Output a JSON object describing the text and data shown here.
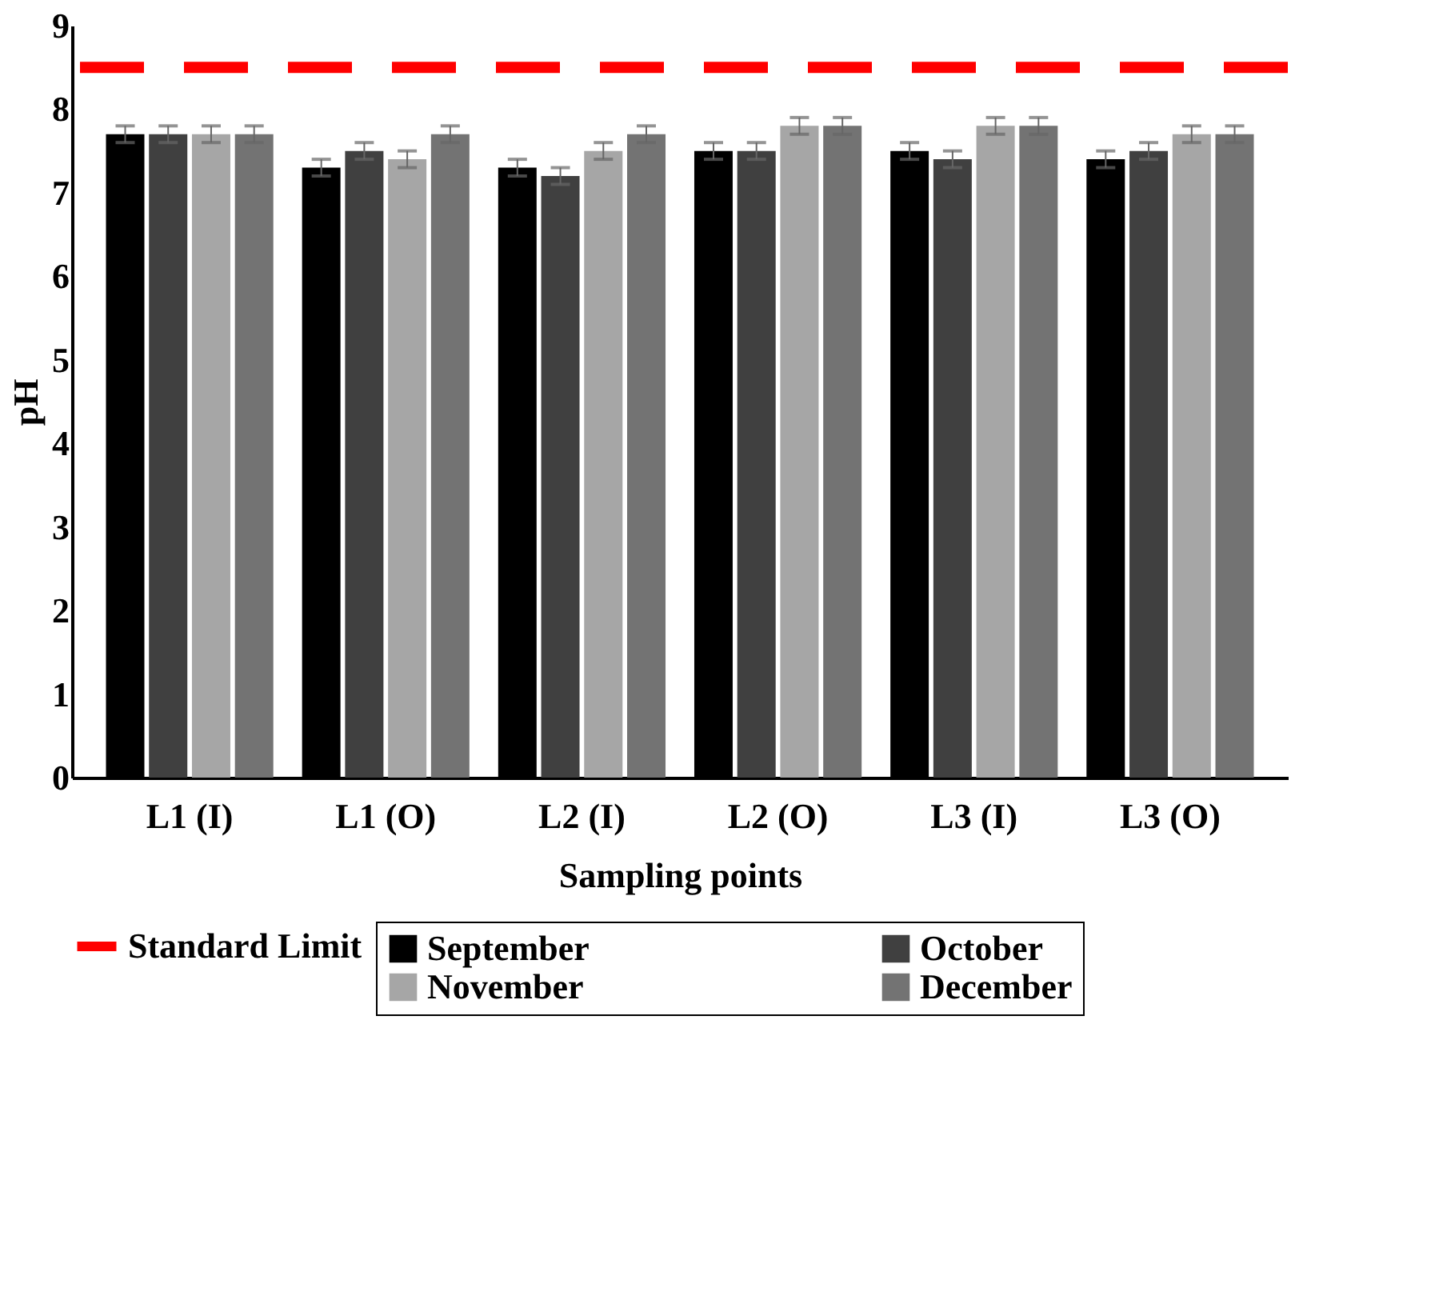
{
  "chart_data": {
    "type": "bar",
    "xlabel": "Sampling points",
    "ylabel": "pH",
    "categories": [
      "L1 (I)",
      "L1 (O)",
      "L2 (I)",
      "L2 (O)",
      "L3 (I)",
      "L3 (O)"
    ],
    "series": [
      {
        "name": "September",
        "color": "#000000",
        "values": [
          7.7,
          7.3,
          7.3,
          7.5,
          7.5,
          7.4
        ],
        "errors": [
          0.1,
          0.1,
          0.1,
          0.1,
          0.1,
          0.1
        ]
      },
      {
        "name": "October",
        "color": "#404040",
        "values": [
          7.7,
          7.5,
          7.2,
          7.5,
          7.4,
          7.5
        ],
        "errors": [
          0.1,
          0.1,
          0.1,
          0.1,
          0.1,
          0.1
        ]
      },
      {
        "name": "November",
        "color": "#a6a6a6",
        "values": [
          7.7,
          7.4,
          7.5,
          7.8,
          7.8,
          7.7
        ],
        "errors": [
          0.1,
          0.1,
          0.1,
          0.1,
          0.1,
          0.1
        ]
      },
      {
        "name": "December",
        "color": "#737373",
        "values": [
          7.7,
          7.7,
          7.7,
          7.8,
          7.8,
          7.7
        ],
        "errors": [
          0.1,
          0.1,
          0.1,
          0.1,
          0.1,
          0.1
        ]
      }
    ],
    "ref_lines": [
      {
        "axis": "y",
        "value": 8.5,
        "label": "Standard Limit",
        "color": "#ff0000",
        "line_style": "dashed"
      }
    ],
    "ylim": [
      0,
      9
    ],
    "yticks": [
      0,
      1,
      2,
      3,
      4,
      5,
      6,
      7,
      8,
      9
    ],
    "grid": false,
    "legend": "bottom"
  }
}
